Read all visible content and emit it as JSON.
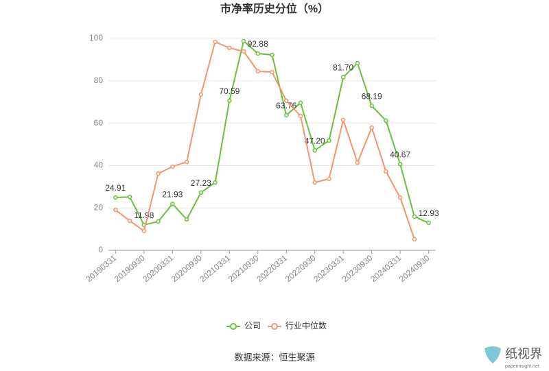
{
  "chart_data": {
    "type": "line",
    "title": "市净率历史分位（%）",
    "categories": [
      "20190331",
      null,
      "20190930",
      null,
      "20200331",
      null,
      "20200930",
      null,
      "20210331",
      null,
      "20210930",
      null,
      "20220331",
      null,
      "20220930",
      null,
      "20230331",
      null,
      "20230930",
      null,
      "20240331",
      null,
      "20240930"
    ],
    "series": [
      {
        "name": "公司",
        "color": "#67c23a",
        "values": [
          24.91,
          25.2,
          11.98,
          13.6,
          21.93,
          14.6,
          27.23,
          32.0,
          70.59,
          98.7,
          92.88,
          92.2,
          63.76,
          69.6,
          47.2,
          51.8,
          81.7,
          88.3,
          68.19,
          61.2,
          40.67,
          15.9,
          12.93
        ],
        "value_labels": [
          "24.91",
          null,
          "11.98",
          null,
          "21.93",
          null,
          "27.23",
          null,
          "70.59",
          null,
          "92.88",
          null,
          "63.76",
          null,
          "47.20",
          null,
          "81.70",
          null,
          "68.19",
          null,
          "40.67",
          null,
          "12.93"
        ]
      },
      {
        "name": "行业中位数",
        "color": "#f4956a",
        "values": [
          19.1,
          13.9,
          9.1,
          36.2,
          39.5,
          41.7,
          73.5,
          98.4,
          95.5,
          93.9,
          84.5,
          84.1,
          70.6,
          63.4,
          32.0,
          33.7,
          61.5,
          41.4,
          57.9,
          37.2,
          24.9,
          5.2,
          null
        ]
      }
    ],
    "ylim": [
      0,
      100
    ],
    "yticks": [
      0,
      20,
      40,
      60,
      80,
      100
    ],
    "grid": true,
    "legend": "bottom",
    "source": "数据来源：恒生聚源",
    "watermark": {
      "name": "纸视界",
      "url": "paperinsight.net"
    }
  }
}
